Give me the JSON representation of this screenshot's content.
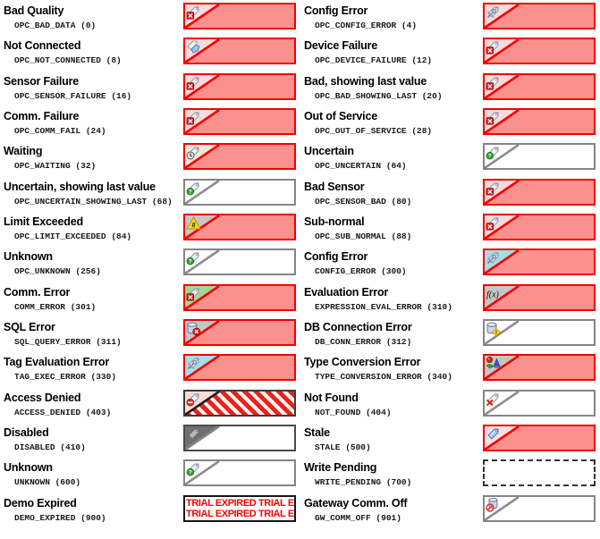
{
  "page": {
    "background": "#ffffff"
  },
  "colors": {
    "bad_border": "#f40000",
    "bad_fill": "#fb918e",
    "bad_corner": "#fadada",
    "uncertain_border": "#858585",
    "silver_corner": "#c6c6c6",
    "green_corner": "#a0d898",
    "blue_corner": "#a6dde8",
    "trial_text_color": "#fb0000"
  },
  "columns": [
    {
      "entries": [
        {
          "title": "Bad Quality",
          "code": "OPC_BAD_DATA (0)",
          "box": {
            "variant": "red",
            "corner": "#fadada",
            "icon": "tag-error-icon"
          }
        },
        {
          "title": "Not Connected",
          "code": "OPC_NOT_CONNECTED (8)",
          "box": {
            "variant": "red",
            "corner": "#fadada",
            "icon": "tag-disconnected-icon"
          }
        },
        {
          "title": "Sensor Failure",
          "code": "OPC_SENSOR_FAILURE (16)",
          "box": {
            "variant": "red",
            "corner": "#fadada",
            "icon": "tag-error-icon"
          }
        },
        {
          "title": "Comm. Failure",
          "code": "OPC_COMM_FAIL (24)",
          "box": {
            "variant": "red",
            "corner": "#fadada",
            "icon": "tag-error-icon"
          }
        },
        {
          "title": "Waiting",
          "code": "OPC_WAITING (32)",
          "box": {
            "variant": "red",
            "corner": "#f8e3da",
            "icon": "tag-clock-icon"
          }
        },
        {
          "title": "Uncertain, showing last value",
          "code": "OPC_UNCERTAIN_SHOWING_LAST (68)",
          "box": {
            "variant": "gray",
            "corner": "#ffffff",
            "icon": "tag-question-icon"
          }
        },
        {
          "title": "Limit Exceeded",
          "code": "OPC_LIMIT_EXCEEDED (84)",
          "box": {
            "variant": "red",
            "corner": "#c6c6c6",
            "icon": "warning-hash-icon"
          }
        },
        {
          "title": "Unknown",
          "code": "OPC_UNKNOWN (256)",
          "box": {
            "variant": "gray",
            "corner": "#ffffff",
            "icon": "tag-question-icon"
          }
        },
        {
          "title": "Comm. Error",
          "code": "COMM_ERROR (301)",
          "box": {
            "variant": "red",
            "corner": "#a0d898",
            "icon": "tag-error-icon"
          }
        },
        {
          "title": "SQL Error",
          "code": "SQL_QUERY_ERROR (311)",
          "box": {
            "variant": "red",
            "corner": "#c6c6c6",
            "icon": "database-error-icon"
          }
        },
        {
          "title": "Tag Evaluation Error",
          "code": "TAG_EXEC_ERROR (330)",
          "box": {
            "variant": "red",
            "corner": "#a6dde8",
            "icon": "tag-tools-icon"
          }
        },
        {
          "title": "Access Denied",
          "code": "ACCESS_DENIED (403)",
          "box": {
            "variant": "denied",
            "corner": "#f7dcd8",
            "icon": "tag-blocked-icon"
          }
        },
        {
          "title": "Disabled",
          "code": "DISABLED (410)",
          "box": {
            "variant": "disabled",
            "corner": "#6f6f6f",
            "icon": "tag-plain-icon"
          }
        },
        {
          "title": "Unknown",
          "code": "UNKNOWN (600)",
          "box": {
            "variant": "gray",
            "corner": "#ffffff",
            "icon": "tag-question-icon"
          }
        },
        {
          "title": "Demo Expired",
          "code": "DEMO_EXPIRED (900)",
          "box": {
            "variant": "demo",
            "demo_text": "TRIAL EXPIRED TRIAL E"
          }
        }
      ]
    },
    {
      "entries": [
        {
          "title": "Config Error",
          "code": "OPC_CONFIG_ERROR (4)",
          "box": {
            "variant": "red",
            "corner": "#fadada",
            "icon": "tag-tools-icon"
          }
        },
        {
          "title": "Device Failure",
          "code": "OPC_DEVICE_FAILURE (12)",
          "box": {
            "variant": "red",
            "corner": "#fadada",
            "icon": "tag-error-icon"
          }
        },
        {
          "title": "Bad, showing last value",
          "code": "OPC_BAD_SHOWING_LAST (20)",
          "box": {
            "variant": "red",
            "corner": "#fadada",
            "icon": "tag-error-icon"
          }
        },
        {
          "title": "Out of Service",
          "code": "OPC_OUT_OF_SERVICE (28)",
          "box": {
            "variant": "red",
            "corner": "#fadada",
            "icon": "tag-error-icon"
          }
        },
        {
          "title": "Uncertain",
          "code": "OPC_UNCERTAIN (64)",
          "box": {
            "variant": "gray",
            "corner": "#ffffff",
            "icon": "tag-question-icon"
          }
        },
        {
          "title": "Bad Sensor",
          "code": "OPC_SENSOR_BAD (80)",
          "box": {
            "variant": "red",
            "corner": "#fadada",
            "icon": "tag-error-icon"
          }
        },
        {
          "title": "Sub-normal",
          "code": "OPC_SUB_NORMAL (88)",
          "box": {
            "variant": "red",
            "corner": "#fadada",
            "icon": "tag-error-icon"
          }
        },
        {
          "title": "Config Error",
          "code": "CONFIG_ERROR (300)",
          "box": {
            "variant": "red",
            "corner": "#a6dde8",
            "icon": "tag-tools-icon"
          }
        },
        {
          "title": "Evaluation Error",
          "code": "EXPRESSION_EVAL_ERROR (310)",
          "box": {
            "variant": "red",
            "corner": "#c6c6c6",
            "icon": "function-icon"
          }
        },
        {
          "title": "DB Connection Error",
          "code": "DB_CONN_ERROR (312)",
          "box": {
            "variant": "gray",
            "corner": "#ffffff",
            "icon": "database-warning-icon"
          }
        },
        {
          "title": "Type Conversion Error",
          "code": "TYPE_CONVERSION_ERROR (340)",
          "box": {
            "variant": "red",
            "corner": "#c6c6c6",
            "icon": "type-shapes-icon"
          }
        },
        {
          "title": "Not Found",
          "code": "NOT_FOUND (404)",
          "box": {
            "variant": "gray",
            "corner": "#ffffff",
            "icon": "tag-delete-icon"
          }
        },
        {
          "title": "Stale",
          "code": "STALE (500)",
          "box": {
            "variant": "red",
            "corner": "#fadfe0",
            "icon": "tag-blue-icon"
          }
        },
        {
          "title": "Write Pending",
          "code": "WRITE_PENDING (700)",
          "box": {
            "variant": "dashed"
          }
        },
        {
          "title": "Gateway Comm. Off",
          "code": "GW_COMM_OFF (901)",
          "box": {
            "variant": "gray",
            "corner": "#ffffff",
            "icon": "database-off-icon"
          }
        }
      ]
    }
  ]
}
